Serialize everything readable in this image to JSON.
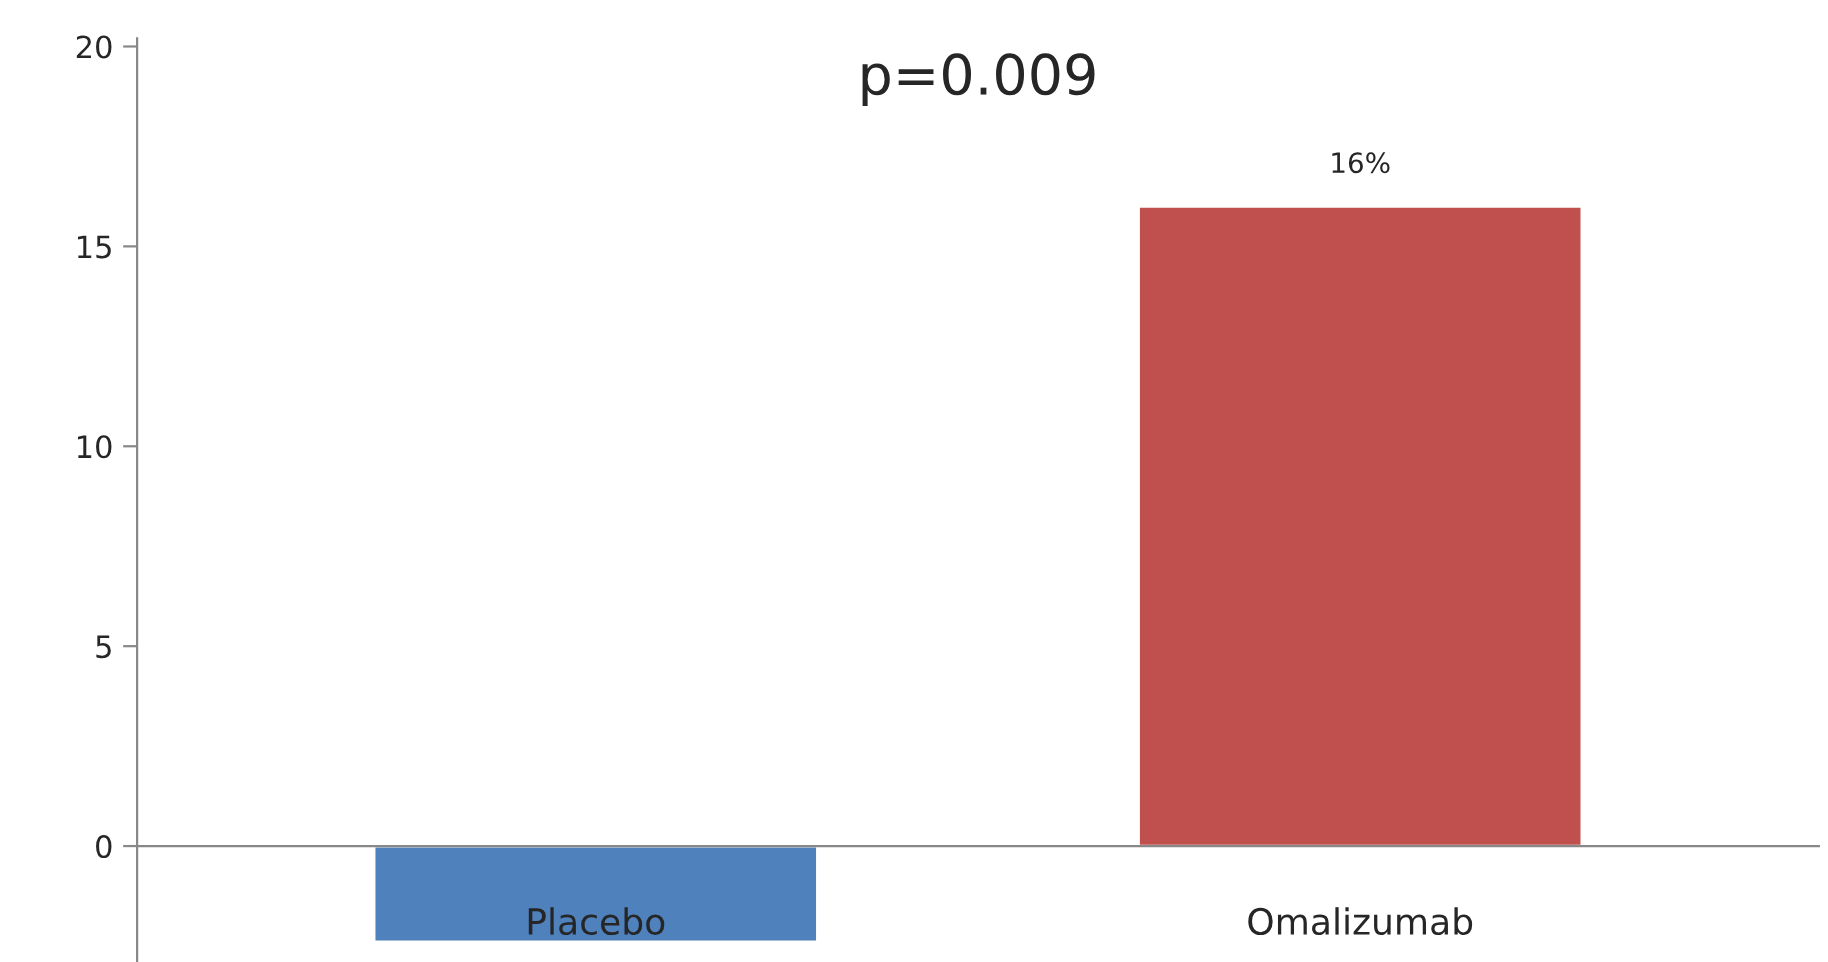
{
  "chart_data": {
    "type": "bar",
    "categories": [
      "Placebo",
      "Omalizumab"
    ],
    "values": [
      -2.4,
      16
    ],
    "colors": [
      "#4f81bd",
      "#c0504d"
    ],
    "value_labels": [
      null,
      "16%"
    ],
    "ylim": [
      -2.9,
      20.2
    ],
    "yticks": [
      0,
      5,
      10,
      15,
      20
    ],
    "annotations": [
      "p=0.009"
    ],
    "grid": false,
    "legend": false
  }
}
